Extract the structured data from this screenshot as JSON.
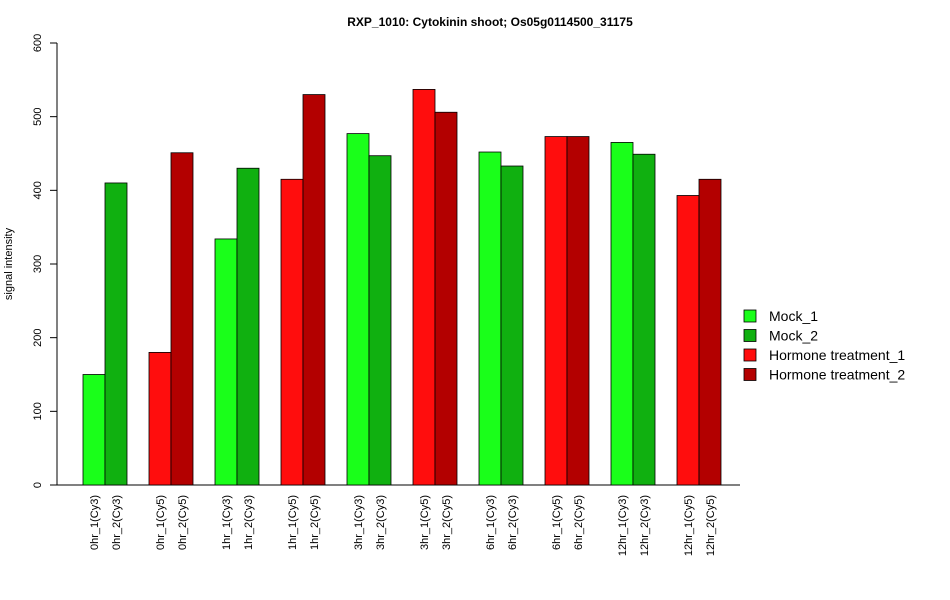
{
  "chart_data": {
    "type": "bar",
    "title": "RXP_1010: Cytokinin shoot; Os05g0114500_31175",
    "ylabel": "signal intensity",
    "xlabel": "",
    "ylim": [
      0,
      600
    ],
    "yticks": [
      0,
      100,
      200,
      300,
      400,
      500,
      600
    ],
    "grid": false,
    "legend_position": "right",
    "bars": [
      {
        "label": "0hr_1(Cy3)",
        "value": 150,
        "series": "Mock_1"
      },
      {
        "label": "0hr_2(Cy3)",
        "value": 410,
        "series": "Mock_2"
      },
      {
        "label": "0hr_1(Cy5)",
        "value": 180,
        "series": "Hormone treatment_1"
      },
      {
        "label": "0hr_2(Cy5)",
        "value": 451,
        "series": "Hormone treatment_2"
      },
      {
        "label": "1hr_1(Cy3)",
        "value": 334,
        "series": "Mock_1"
      },
      {
        "label": "1hr_2(Cy3)",
        "value": 430,
        "series": "Mock_2"
      },
      {
        "label": "1hr_1(Cy5)",
        "value": 415,
        "series": "Hormone treatment_1"
      },
      {
        "label": "1hr_2(Cy5)",
        "value": 530,
        "series": "Hormone treatment_2"
      },
      {
        "label": "3hr_1(Cy3)",
        "value": 477,
        "series": "Mock_1"
      },
      {
        "label": "3hr_2(Cy3)",
        "value": 447,
        "series": "Mock_2"
      },
      {
        "label": "3hr_1(Cy5)",
        "value": 537,
        "series": "Hormone treatment_1"
      },
      {
        "label": "3hr_2(Cy5)",
        "value": 506,
        "series": "Hormone treatment_2"
      },
      {
        "label": "6hr_1(Cy3)",
        "value": 452,
        "series": "Mock_1"
      },
      {
        "label": "6hr_2(Cy3)",
        "value": 433,
        "series": "Mock_2"
      },
      {
        "label": "6hr_1(Cy5)",
        "value": 473,
        "series": "Hormone treatment_1"
      },
      {
        "label": "6hr_2(Cy5)",
        "value": 473,
        "series": "Hormone treatment_2"
      },
      {
        "label": "12hr_1(Cy3)",
        "value": 465,
        "series": "Mock_1"
      },
      {
        "label": "12hr_2(Cy3)",
        "value": 449,
        "series": "Mock_2"
      },
      {
        "label": "12hr_1(Cy5)",
        "value": 393,
        "series": "Hormone treatment_1"
      },
      {
        "label": "12hr_2(Cy5)",
        "value": 415,
        "series": "Hormone treatment_2"
      }
    ],
    "legend": [
      {
        "name": "Mock_1",
        "color": "#1aff1a"
      },
      {
        "name": "Mock_2",
        "color": "#10b010"
      },
      {
        "name": "Hormone treatment_1",
        "color": "#ff0d0d"
      },
      {
        "name": "Hormone treatment_2",
        "color": "#b30000"
      }
    ]
  }
}
